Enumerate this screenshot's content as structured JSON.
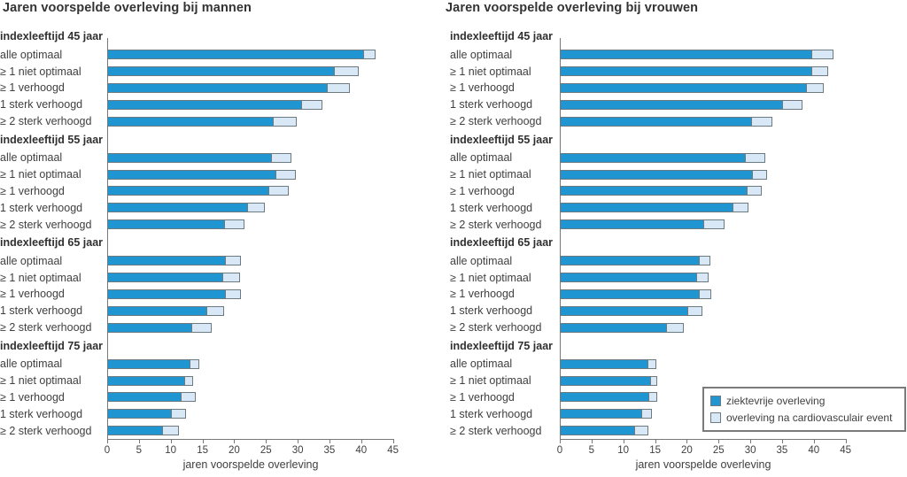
{
  "colors": {
    "bar_dark": "#1f96d2",
    "bar_light": "#d9e8f6",
    "bar_border": "#6d7a80",
    "axis": "#787878",
    "text": "#3f3f3f"
  },
  "legend": {
    "items": [
      {
        "label": "ziektevrije overleving",
        "color": "#1f96d2"
      },
      {
        "label": "overleving na cardiovasculair event",
        "color": "#d9e8f6"
      }
    ]
  },
  "chart_data": [
    {
      "type": "bar",
      "orientation": "horizontal",
      "stacked": true,
      "title": "Jaren voorspelde overleving bij mannen",
      "xlabel": "jaren voorspelde overleving",
      "xlim": [
        0,
        45
      ],
      "xticks": [
        0,
        5,
        10,
        15,
        20,
        25,
        30,
        35,
        40,
        45
      ],
      "series_names": [
        "ziektevrije overleving",
        "overleving na cardiovasculair event"
      ],
      "groups": [
        {
          "label": "indexleeftijd 45 jaar",
          "rows": [
            {
              "label": "alle optimaal",
              "values": [
                40.5,
                1.9
              ]
            },
            {
              "label": "≥ 1 niet optimaal",
              "values": [
                35.9,
                3.8
              ]
            },
            {
              "label": "≥ 1 verhoogd",
              "values": [
                34.7,
                3.7
              ]
            },
            {
              "label": "1 sterk verhoogd",
              "values": [
                30.7,
                3.4
              ]
            },
            {
              "label": "≥ 2 sterk verhoogd",
              "values": [
                26.2,
                3.8
              ]
            }
          ]
        },
        {
          "label": "indexleeftijd 55 jaar",
          "rows": [
            {
              "label": "alle optimaal",
              "values": [
                26.0,
                3.2
              ]
            },
            {
              "label": "≥ 1 niet optimaal",
              "values": [
                26.7,
                3.2
              ]
            },
            {
              "label": "≥ 1 verhoogd",
              "values": [
                25.5,
                3.2
              ]
            },
            {
              "label": "1 sterk verhoogd",
              "values": [
                22.1,
                2.9
              ]
            },
            {
              "label": "≥ 2 sterk verhoogd",
              "values": [
                18.5,
                3.3
              ]
            }
          ]
        },
        {
          "label": "indexleeftijd 65 jaar",
          "rows": [
            {
              "label": "alle optimaal",
              "values": [
                18.7,
                2.5
              ]
            },
            {
              "label": "≥ 1 niet optimaal",
              "values": [
                18.3,
                2.7
              ]
            },
            {
              "label": "≥ 1 verhoogd",
              "values": [
                18.7,
                2.5
              ]
            },
            {
              "label": "1 sterk verhoogd",
              "values": [
                15.8,
                2.8
              ]
            },
            {
              "label": "≥ 2 sterk verhoogd",
              "values": [
                13.4,
                3.2
              ]
            }
          ]
        },
        {
          "label": "indexleeftijd 75 jaar",
          "rows": [
            {
              "label": "alle optimaal",
              "values": [
                13.1,
                1.5
              ]
            },
            {
              "label": "≥ 1 niet optimaal",
              "values": [
                12.2,
                1.5
              ]
            },
            {
              "label": "≥ 1 verhoogd",
              "values": [
                11.7,
                2.4
              ]
            },
            {
              "label": "1 sterk verhoogd",
              "values": [
                10.2,
                2.3
              ]
            },
            {
              "label": "≥ 2 sterk verhoogd",
              "values": [
                8.8,
                2.7
              ]
            }
          ]
        }
      ]
    },
    {
      "type": "bar",
      "orientation": "horizontal",
      "stacked": true,
      "title": "Jaren voorspelde overleving bij vrouwen",
      "xlabel": "jaren voorspelde overleving",
      "xlim": [
        0,
        45
      ],
      "xticks": [
        0,
        5,
        10,
        15,
        20,
        25,
        30,
        35,
        40,
        45
      ],
      "series_names": [
        "ziektevrije overleving",
        "overleving na cardiovasculair event"
      ],
      "groups": [
        {
          "label": "indexleeftijd 45 jaar",
          "rows": [
            {
              "label": "alle optimaal",
              "values": [
                39.7,
                3.5
              ]
            },
            {
              "label": "≥ 1 niet optimaal",
              "values": [
                39.8,
                2.6
              ]
            },
            {
              "label": "≥ 1 verhoogd",
              "values": [
                38.9,
                2.8
              ]
            },
            {
              "label": "1 sterk verhoogd",
              "values": [
                35.2,
                3.1
              ]
            },
            {
              "label": "≥ 2 sterk verhoogd",
              "values": [
                30.3,
                3.3
              ]
            }
          ]
        },
        {
          "label": "indexleeftijd 55 jaar",
          "rows": [
            {
              "label": "alle optimaal",
              "values": [
                29.3,
                3.2
              ]
            },
            {
              "label": "≥ 1 niet optimaal",
              "values": [
                30.4,
                2.4
              ]
            },
            {
              "label": "≥ 1 verhoogd",
              "values": [
                29.5,
                2.5
              ]
            },
            {
              "label": "1 sterk verhoogd",
              "values": [
                27.3,
                2.6
              ]
            },
            {
              "label": "≥ 2 sterk verhoogd",
              "values": [
                22.7,
                3.4
              ]
            }
          ]
        },
        {
          "label": "indexleeftijd 65 jaar",
          "rows": [
            {
              "label": "alle optimaal",
              "values": [
                22.0,
                1.9
              ]
            },
            {
              "label": "≥ 1 niet optimaal",
              "values": [
                21.6,
                2.0
              ]
            },
            {
              "label": "≥ 1 verhoogd",
              "values": [
                22.0,
                2.0
              ]
            },
            {
              "label": "1 sterk verhoogd",
              "values": [
                20.2,
                2.4
              ]
            },
            {
              "label": "≥ 2 sterk verhoogd",
              "values": [
                16.8,
                2.9
              ]
            }
          ]
        },
        {
          "label": "indexleeftijd 75 jaar",
          "rows": [
            {
              "label": "alle optimaal",
              "values": [
                13.9,
                1.5
              ]
            },
            {
              "label": "≥ 1 niet optimaal",
              "values": [
                14.3,
                1.2
              ]
            },
            {
              "label": "≥ 1 verhoogd",
              "values": [
                14.1,
                1.4
              ]
            },
            {
              "label": "1 sterk verhoogd",
              "values": [
                12.9,
                1.8
              ]
            },
            {
              "label": "≥ 2 sterk verhoogd",
              "values": [
                11.8,
                2.3
              ]
            }
          ]
        }
      ]
    }
  ]
}
